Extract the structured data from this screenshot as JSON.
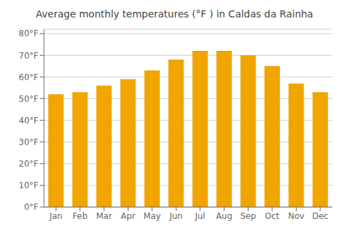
{
  "chart_data": {
    "type": "bar",
    "title": "Average monthly temperatures (°F ) in Caldas da Rainha",
    "categories": [
      "Jan",
      "Feb",
      "Mar",
      "Apr",
      "May",
      "Jun",
      "Jul",
      "Aug",
      "Sep",
      "Oct",
      "Nov",
      "Dec"
    ],
    "values": [
      52,
      53,
      56,
      59,
      63,
      68,
      72,
      72,
      70,
      65,
      57,
      53
    ],
    "color": "#F0A500",
    "ylim": [
      0,
      82
    ],
    "yticks": [
      {
        "value": 0,
        "label": "0°F"
      },
      {
        "value": 10,
        "label": "10°F"
      },
      {
        "value": 20,
        "label": "20°F"
      },
      {
        "value": 30,
        "label": "30°F"
      },
      {
        "value": 40,
        "label": "40°F"
      },
      {
        "value": 50,
        "label": "50°F"
      },
      {
        "value": 60,
        "label": "60°F"
      },
      {
        "value": 70,
        "label": "70°F"
      },
      {
        "value": 80,
        "label": "80°F"
      }
    ],
    "grid": true
  }
}
